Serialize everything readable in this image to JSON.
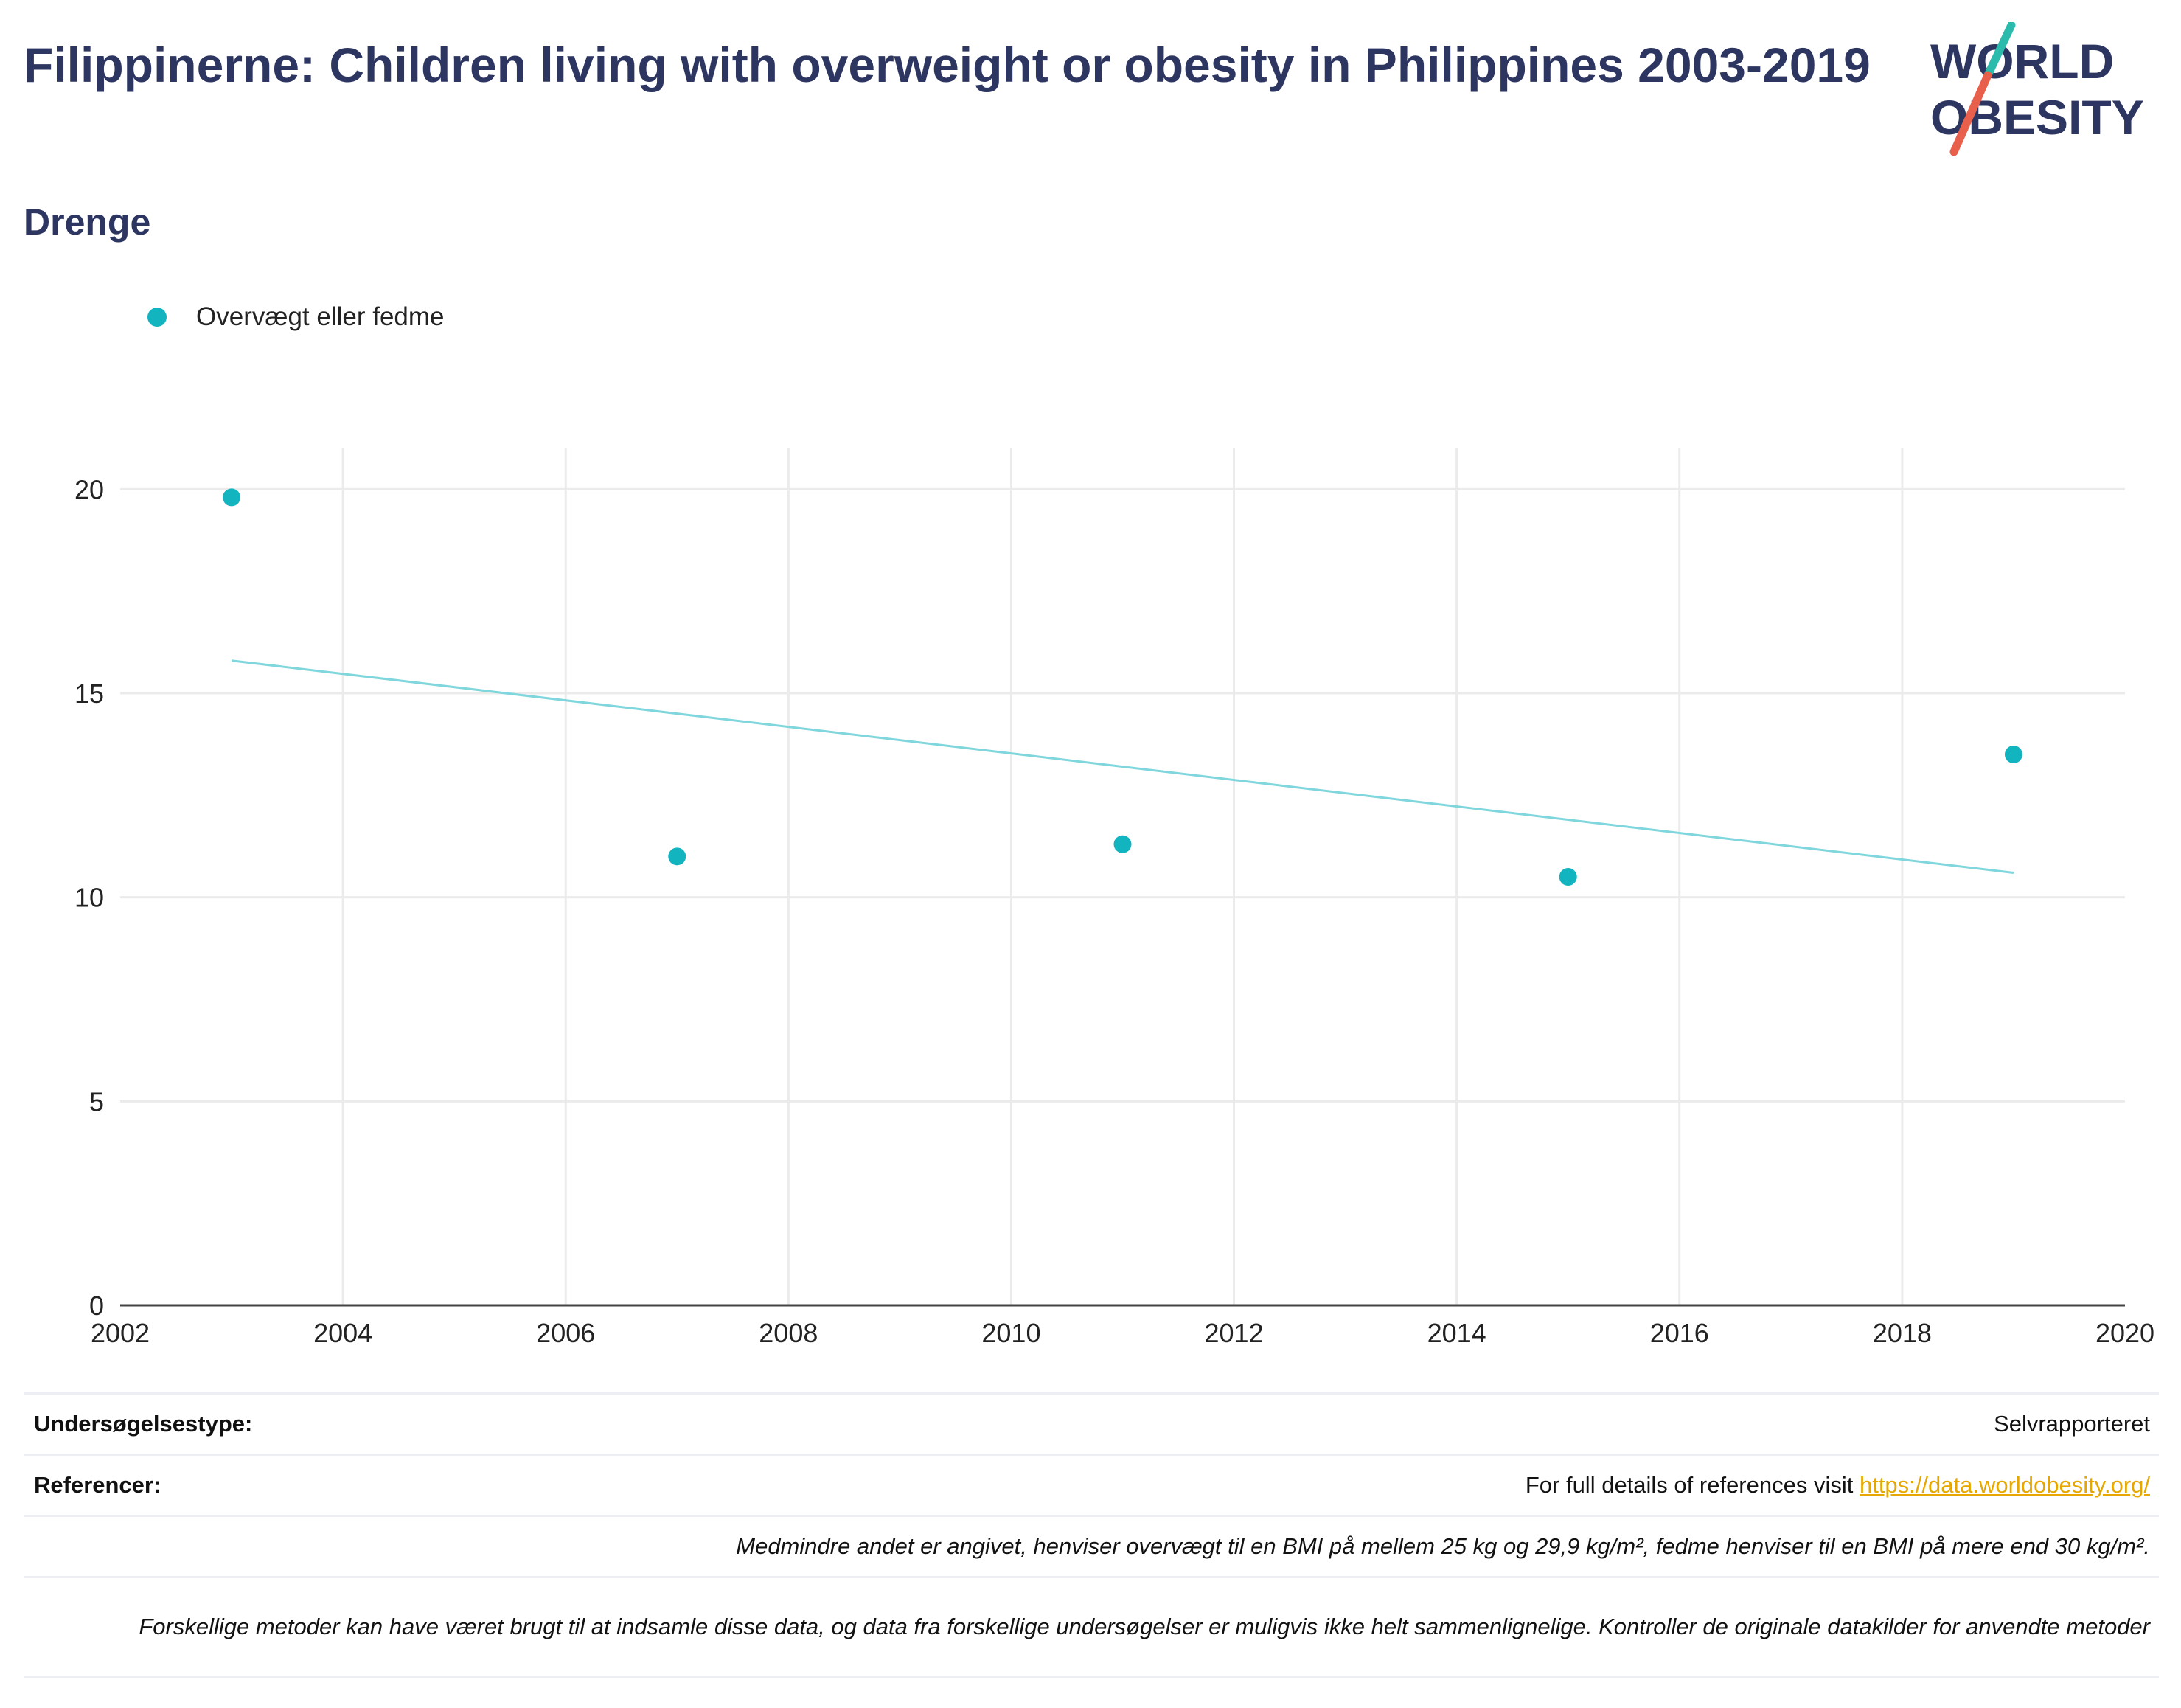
{
  "header": {
    "title": "Filippinerne: Children living with overweight or obesity in Philippines 2003-2019",
    "subtitle": "Drenge"
  },
  "logo": {
    "line1": "WORLD",
    "line2": "OBESITY",
    "accent_teal": "#2bbbad",
    "accent_red": "#e8604c",
    "text_color": "#2d3561"
  },
  "legend": {
    "label": "Overvægt eller fedme",
    "color": "#12b4bf"
  },
  "chart_data": {
    "type": "scatter",
    "x_ticks": [
      "2002",
      "2004",
      "2006",
      "2008",
      "2010",
      "2012",
      "2014",
      "2016",
      "2018",
      "2020"
    ],
    "y_ticks": [
      "0",
      "5",
      "10",
      "15",
      "20"
    ],
    "xlim": [
      2002,
      2020
    ],
    "ylim": [
      0,
      21
    ],
    "grid": true,
    "legend_position": "top-left",
    "series": [
      {
        "name": "Overvægt eller fedme",
        "color": "#12b4bf",
        "points": [
          {
            "x": 2003,
            "y": 19.8
          },
          {
            "x": 2007,
            "y": 11.0
          },
          {
            "x": 2011,
            "y": 11.3
          },
          {
            "x": 2015,
            "y": 10.5
          },
          {
            "x": 2019,
            "y": 13.5
          }
        ]
      }
    ],
    "trendline": {
      "color": "#7fd6dc",
      "points": [
        {
          "x": 2003,
          "y": 15.8
        },
        {
          "x": 2019,
          "y": 10.6
        }
      ]
    }
  },
  "footer": {
    "survey_type_label": "Undersøgelsestype:",
    "survey_type_value": "Selvrapporteret",
    "references_label": "Referencer:",
    "references_text": "For full details of references visit ",
    "references_link": "https://data.worldobesity.org/",
    "note_bmi": "Medmindre andet er angivet, henviser overvægt til en BMI på mellem 25 kg og 29,9 kg/m², fedme henviser til en BMI på mere end 30 kg/m².",
    "note_methods": "Forskellige metoder kan have været brugt til at indsamle disse data, og data fra forskellige undersøgelser er muligvis ikke helt sammenlignelige. Kontroller de originale datakilder for anvendte metoder"
  }
}
